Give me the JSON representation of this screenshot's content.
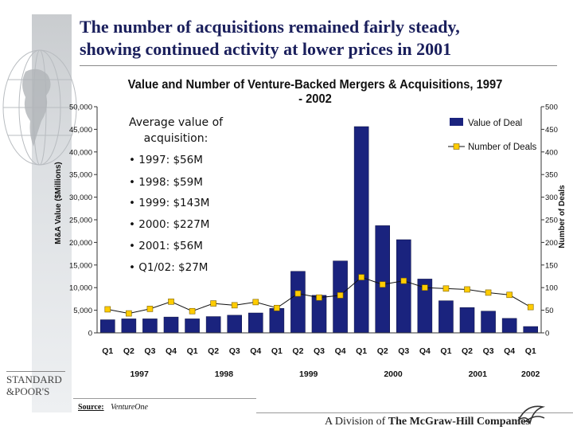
{
  "slide_title": {
    "line1": "The number of acquisitions remained fairly steady,",
    "line2": "showing continued activity at lower prices in 2001"
  },
  "chart_data": {
    "type": "bar",
    "title": "Value and Number of Venture-Backed Mergers & Acquisitions, 1997 - 2002",
    "ylabel": "M&A Value ($Millions)",
    "y2label": "Number of Deals",
    "ylim": [
      0,
      50000
    ],
    "y2lim": [
      0,
      500
    ],
    "y_ticks": [
      "0",
      "5,000",
      "10,000",
      "15,000",
      "20,000",
      "25,000",
      "30,000",
      "35,000",
      "40,000",
      "45,000",
      "50,000"
    ],
    "y2_ticks": [
      "0",
      "50",
      "100",
      "150",
      "200",
      "250",
      "300",
      "350",
      "400",
      "450",
      "500"
    ],
    "categories": [
      "Q1",
      "Q2",
      "Q3",
      "Q4",
      "Q1",
      "Q2",
      "Q3",
      "Q4",
      "Q1",
      "Q2",
      "Q3",
      "Q4",
      "Q1",
      "Q2",
      "Q3",
      "Q4",
      "Q1",
      "Q2",
      "Q3",
      "Q4",
      "Q1"
    ],
    "year_groups": [
      {
        "label": "1997",
        "start": 0,
        "end": 3
      },
      {
        "label": "1998",
        "start": 4,
        "end": 7
      },
      {
        "label": "1999",
        "start": 8,
        "end": 11
      },
      {
        "label": "2000",
        "start": 12,
        "end": 15
      },
      {
        "label": "2001",
        "start": 16,
        "end": 19
      },
      {
        "label": "2002",
        "start": 20,
        "end": 20
      }
    ],
    "series": [
      {
        "name": "Value of Deal",
        "type": "bar",
        "axis": "left",
        "color": "#1a237e",
        "values": [
          2900,
          3100,
          3100,
          3500,
          3100,
          3600,
          3900,
          4400,
          5400,
          13600,
          8300,
          15900,
          45600,
          23700,
          20600,
          11900,
          7100,
          5600,
          4800,
          3200,
          1400
        ]
      },
      {
        "name": "Number of Deals",
        "type": "line",
        "axis": "right",
        "color": "#ffcc00",
        "values": [
          52,
          43,
          53,
          69,
          48,
          65,
          61,
          68,
          55,
          87,
          78,
          83,
          123,
          107,
          115,
          100,
          98,
          96,
          89,
          84,
          57
        ]
      }
    ],
    "legend_position": "top-right",
    "grid": false
  },
  "callout": {
    "heading_line1": "Average value of",
    "heading_line2": "acquisition:",
    "bullets": [
      "• 1997: $56M",
      "• 1998: $59M",
      "• 1999: $143M",
      "• 2000: $227M",
      "• 2001: $56M",
      "• Q1/02: $27M"
    ]
  },
  "source": {
    "label": "Source:",
    "value": "VentureOne"
  },
  "logo": {
    "line1": "STANDARD",
    "line2": "&POOR'S"
  },
  "footer": {
    "division": "A Division of",
    "company": "The McGraw-Hill Companies"
  }
}
